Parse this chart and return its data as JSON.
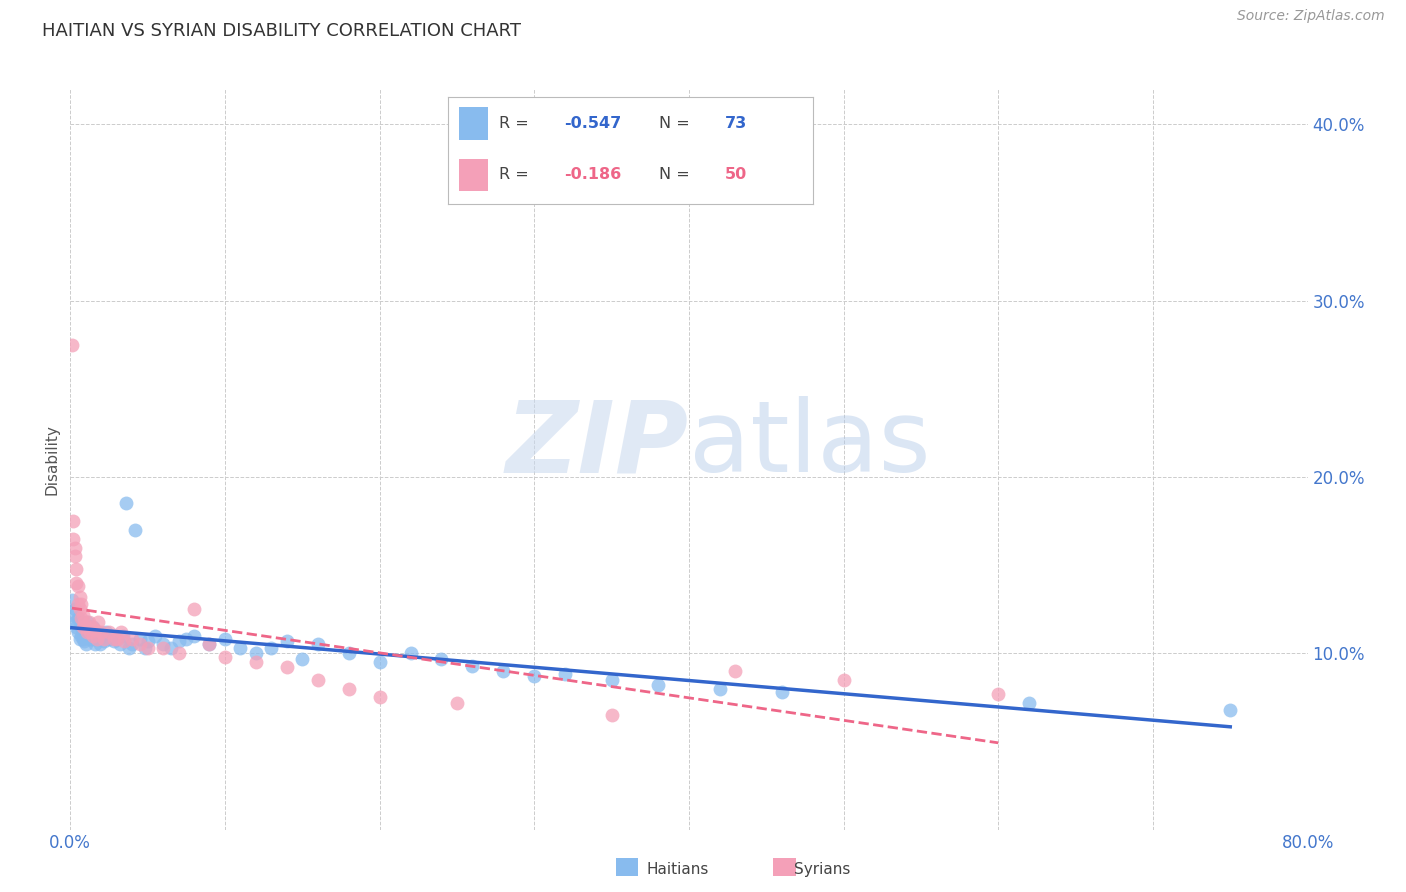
{
  "title": "HAITIAN VS SYRIAN DISABILITY CORRELATION CHART",
  "source": "Source: ZipAtlas.com",
  "ylabel": "Disability",
  "haitian_color": "#88bbee",
  "syrian_color": "#f4a0b8",
  "haitian_line_color": "#3366cc",
  "syrian_line_color": "#ee6688",
  "background_color": "#ffffff",
  "grid_color": "#cccccc",
  "xlim": [
    0.0,
    0.8
  ],
  "ylim": [
    0.0,
    0.42
  ],
  "haitian_x": [
    0.001,
    0.002,
    0.003,
    0.003,
    0.004,
    0.005,
    0.005,
    0.006,
    0.006,
    0.007,
    0.007,
    0.008,
    0.008,
    0.009,
    0.009,
    0.01,
    0.01,
    0.011,
    0.012,
    0.013,
    0.013,
    0.014,
    0.015,
    0.015,
    0.016,
    0.017,
    0.018,
    0.018,
    0.019,
    0.02,
    0.022,
    0.023,
    0.025,
    0.027,
    0.028,
    0.03,
    0.032,
    0.034,
    0.036,
    0.038,
    0.04,
    0.042,
    0.045,
    0.048,
    0.05,
    0.055,
    0.06,
    0.065,
    0.07,
    0.075,
    0.08,
    0.09,
    0.1,
    0.11,
    0.12,
    0.13,
    0.14,
    0.15,
    0.16,
    0.18,
    0.2,
    0.22,
    0.24,
    0.26,
    0.28,
    0.3,
    0.32,
    0.35,
    0.38,
    0.42,
    0.46,
    0.62,
    0.75
  ],
  "haitian_y": [
    0.13,
    0.122,
    0.118,
    0.125,
    0.115,
    0.12,
    0.112,
    0.118,
    0.108,
    0.115,
    0.11,
    0.112,
    0.108,
    0.115,
    0.107,
    0.112,
    0.105,
    0.118,
    0.11,
    0.115,
    0.108,
    0.112,
    0.108,
    0.115,
    0.105,
    0.11,
    0.108,
    0.112,
    0.105,
    0.11,
    0.107,
    0.112,
    0.108,
    0.11,
    0.107,
    0.108,
    0.105,
    0.11,
    0.185,
    0.103,
    0.105,
    0.17,
    0.108,
    0.103,
    0.107,
    0.11,
    0.105,
    0.103,
    0.107,
    0.108,
    0.11,
    0.105,
    0.108,
    0.103,
    0.1,
    0.103,
    0.107,
    0.097,
    0.105,
    0.1,
    0.095,
    0.1,
    0.097,
    0.093,
    0.09,
    0.087,
    0.088,
    0.085,
    0.082,
    0.08,
    0.078,
    0.072,
    0.068
  ],
  "syrian_x": [
    0.001,
    0.002,
    0.002,
    0.003,
    0.003,
    0.004,
    0.004,
    0.005,
    0.005,
    0.006,
    0.006,
    0.007,
    0.007,
    0.008,
    0.008,
    0.009,
    0.01,
    0.011,
    0.012,
    0.013,
    0.014,
    0.015,
    0.016,
    0.017,
    0.018,
    0.02,
    0.022,
    0.025,
    0.028,
    0.03,
    0.033,
    0.035,
    0.04,
    0.045,
    0.05,
    0.06,
    0.07,
    0.08,
    0.09,
    0.1,
    0.12,
    0.14,
    0.16,
    0.18,
    0.2,
    0.25,
    0.35,
    0.43,
    0.5,
    0.6
  ],
  "syrian_y": [
    0.275,
    0.175,
    0.165,
    0.16,
    0.155,
    0.148,
    0.14,
    0.138,
    0.128,
    0.132,
    0.125,
    0.128,
    0.12,
    0.122,
    0.115,
    0.118,
    0.115,
    0.112,
    0.118,
    0.112,
    0.115,
    0.11,
    0.113,
    0.108,
    0.118,
    0.112,
    0.108,
    0.112,
    0.108,
    0.108,
    0.112,
    0.107,
    0.108,
    0.105,
    0.103,
    0.103,
    0.1,
    0.125,
    0.105,
    0.098,
    0.095,
    0.092,
    0.085,
    0.08,
    0.075,
    0.072,
    0.065,
    0.09,
    0.085,
    0.077
  ]
}
